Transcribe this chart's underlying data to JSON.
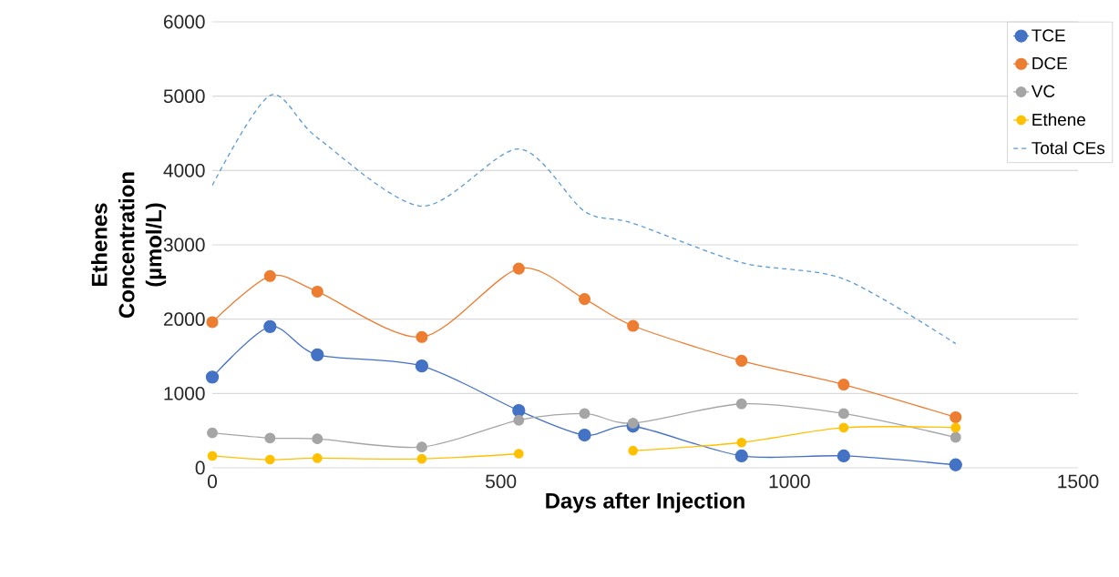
{
  "chart_data": {
    "type": "line",
    "xlabel": "Days after Injection",
    "ylabel": "Ethenes Concentration (µmol/L)",
    "x": [
      0,
      100,
      182,
      363,
      531,
      645,
      729,
      917,
      1094,
      1288
    ],
    "series": [
      {
        "name": "TCE",
        "color": "#4472c4",
        "values": [
          1220,
          1900,
          1520,
          1370,
          770,
          440,
          560,
          160,
          160,
          40
        ]
      },
      {
        "name": "DCE",
        "color": "#ed7d31",
        "values": [
          1960,
          2580,
          2370,
          1760,
          2680,
          2270,
          1910,
          1440,
          1120,
          680
        ]
      },
      {
        "name": "VC",
        "color": "#a5a5a5",
        "values": [
          470,
          400,
          390,
          280,
          640,
          730,
          600,
          860,
          730,
          410
        ]
      },
      {
        "name": "Ethene",
        "color": "#ffc000",
        "values": [
          160,
          110,
          130,
          120,
          190,
          null,
          230,
          340,
          540,
          540
        ]
      },
      {
        "name": "Total CEs",
        "color": "#5b9bd5",
        "marker": "none",
        "line_style": "dashed",
        "values": [
          3800,
          5010,
          4440,
          3520,
          4290,
          3450,
          3290,
          2760,
          2540,
          1670
        ]
      }
    ],
    "xlim": [
      0,
      1500
    ],
    "xticks": [
      0,
      500,
      1000,
      1500
    ],
    "ylim": [
      0,
      6000
    ],
    "yticks": [
      0,
      1000,
      2000,
      3000,
      4000,
      5000,
      6000
    ],
    "grid": "y",
    "legend": "top right",
    "marker": "circle",
    "line_style": "solid"
  }
}
